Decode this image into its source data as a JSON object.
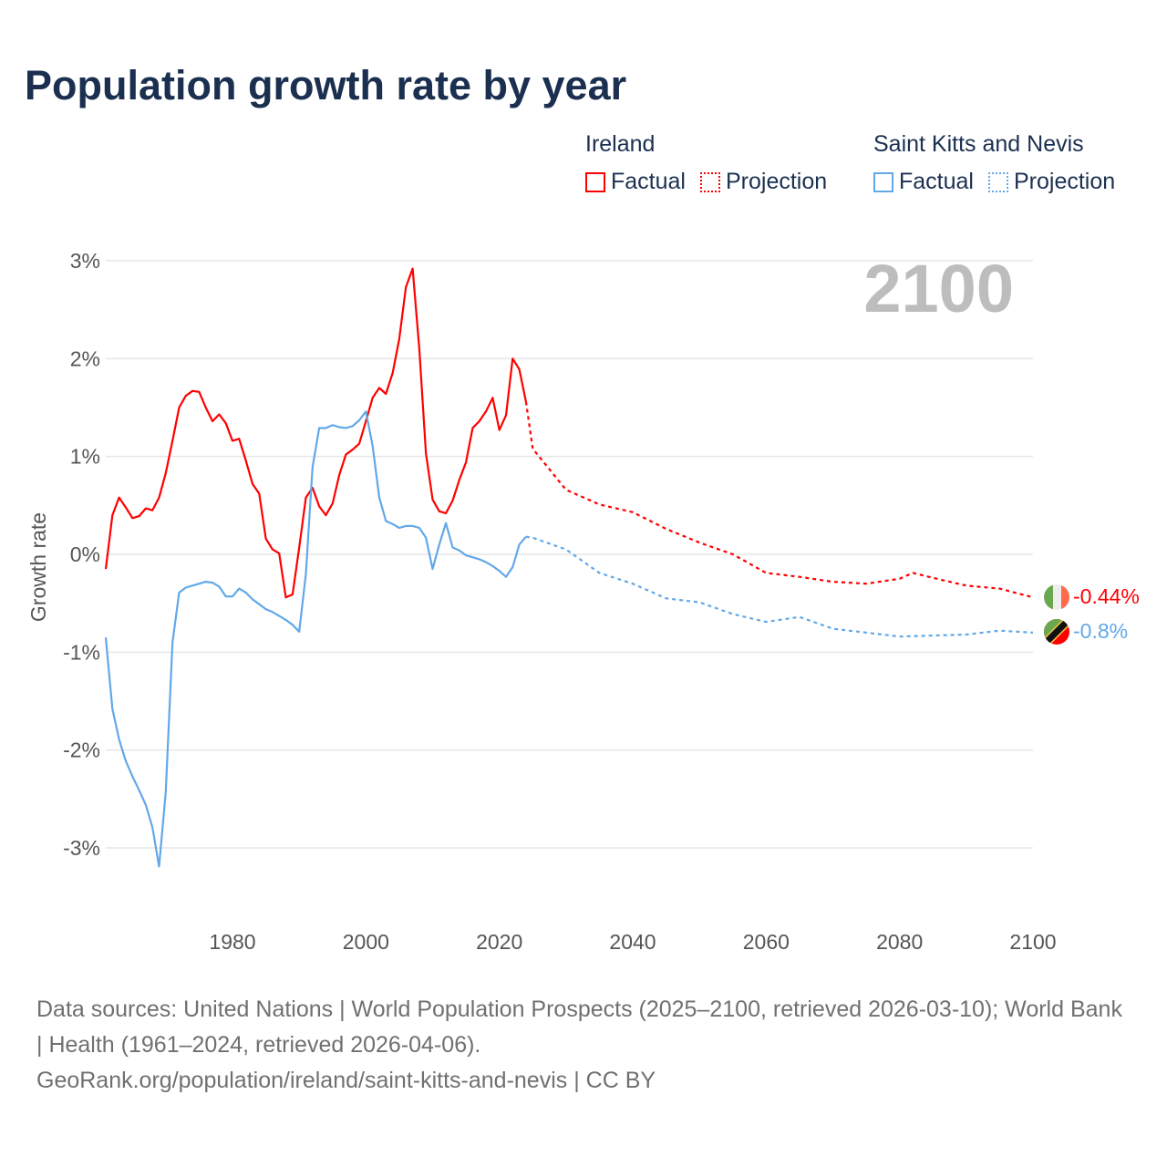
{
  "title": "Population growth rate by year",
  "legend": [
    {
      "group": "Ireland",
      "factual": "Factual",
      "projection": "Projection",
      "color": "#ff0000"
    },
    {
      "group": "Saint Kitts and Nevis",
      "factual": "Factual",
      "projection": "Projection",
      "color": "#62a8e8"
    }
  ],
  "chart_data": {
    "type": "line",
    "title": "Population growth rate by year",
    "ylabel": "Growth rate",
    "xlabel": "",
    "xlim": [
      1961,
      2100
    ],
    "ylim": [
      -3.5,
      3
    ],
    "x_ticks": [
      "1980",
      "2000",
      "2020",
      "2040",
      "2060",
      "2080",
      "2100"
    ],
    "y_ticks": [
      "3%",
      "2%",
      "1%",
      "0%",
      "-1%",
      "-2%",
      "-3%"
    ],
    "year_label": "2100",
    "grid": true,
    "series": [
      {
        "name": "Ireland",
        "color": "#ff0000",
        "end_label": "-0.44%",
        "factual_start": 1961,
        "factual": [
          -0.15,
          0.4,
          0.58,
          0.48,
          0.37,
          0.39,
          0.47,
          0.45,
          0.58,
          0.83,
          1.16,
          1.5,
          1.62,
          1.67,
          1.66,
          1.5,
          1.36,
          1.43,
          1.34,
          1.16,
          1.18,
          0.96,
          0.72,
          0.62,
          0.16,
          0.05,
          0.01,
          -0.44,
          -0.41,
          0.07,
          0.58,
          0.68,
          0.49,
          0.4,
          0.52,
          0.81,
          1.02,
          1.07,
          1.13,
          1.36,
          1.6,
          1.7,
          1.64,
          1.85,
          2.2,
          2.73,
          2.92,
          2.1,
          1.03,
          0.56,
          0.44,
          0.42,
          0.55,
          0.76,
          0.94,
          1.29,
          1.36,
          1.46,
          1.6,
          1.27,
          1.42,
          2.0,
          1.89,
          1.56
        ],
        "projection_years": [
          2024,
          2025,
          2030,
          2035,
          2040,
          2045,
          2050,
          2055,
          2060,
          2065,
          2070,
          2075,
          2080,
          2082,
          2085,
          2090,
          2095,
          2100
        ],
        "projection": [
          1.56,
          1.08,
          0.66,
          0.51,
          0.43,
          0.26,
          0.12,
          0.0,
          -0.19,
          -0.23,
          -0.28,
          -0.3,
          -0.25,
          -0.19,
          -0.24,
          -0.32,
          -0.35,
          -0.44
        ]
      },
      {
        "name": "Saint Kitts and Nevis",
        "color": "#62a8e8",
        "end_label": "-0.8%",
        "factual_start": 1961,
        "factual": [
          -0.85,
          -1.58,
          -1.89,
          -2.11,
          -2.27,
          -2.41,
          -2.56,
          -2.79,
          -3.19,
          -2.43,
          -0.9,
          -0.39,
          -0.34,
          -0.32,
          -0.3,
          -0.28,
          -0.29,
          -0.33,
          -0.43,
          -0.43,
          -0.35,
          -0.39,
          -0.46,
          -0.51,
          -0.56,
          -0.59,
          -0.63,
          -0.67,
          -0.72,
          -0.79,
          -0.2,
          0.89,
          1.29,
          1.29,
          1.32,
          1.3,
          1.29,
          1.31,
          1.37,
          1.46,
          1.11,
          0.58,
          0.34,
          0.31,
          0.27,
          0.29,
          0.29,
          0.27,
          0.17,
          -0.15,
          0.1,
          0.32,
          0.07,
          0.04,
          -0.01,
          -0.03,
          -0.05,
          -0.08,
          -0.12,
          -0.17,
          -0.23,
          -0.13,
          0.1,
          0.18
        ],
        "projection_years": [
          2024,
          2025,
          2030,
          2035,
          2040,
          2045,
          2050,
          2055,
          2060,
          2065,
          2070,
          2075,
          2080,
          2085,
          2090,
          2095,
          2100
        ],
        "projection": [
          0.18,
          0.17,
          0.05,
          -0.19,
          -0.3,
          -0.45,
          -0.49,
          -0.61,
          -0.69,
          -0.64,
          -0.76,
          -0.8,
          -0.84,
          -0.83,
          -0.82,
          -0.78,
          -0.8
        ]
      }
    ]
  },
  "footer": {
    "sources": "Data sources: United Nations | World Population Prospects (2025–2100, retrieved 2026-03-10); World Bank | Health (1961–2024, retrieved 2026-04-06).",
    "link": "GeoRank.org/population/ireland/saint-kitts-and-nevis | CC BY"
  }
}
